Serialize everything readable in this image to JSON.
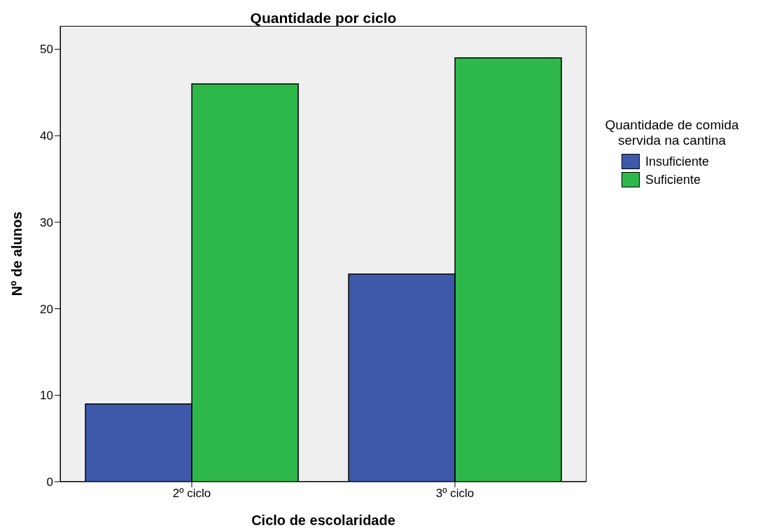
{
  "chart_data": {
    "type": "bar",
    "title": "Quantidade por ciclo",
    "xlabel": "Ciclo de escolaridade",
    "ylabel": "Nº de alunos",
    "legend_title": "Quantidade de comida servida na cantina",
    "categories": [
      "2º ciclo",
      "3º ciclo"
    ],
    "series": [
      {
        "name": "Insuficiente",
        "color": "#3f59aa",
        "values": [
          9,
          24
        ]
      },
      {
        "name": "Suficiente",
        "color": "#2fb84a",
        "values": [
          46,
          49
        ]
      }
    ],
    "ylim": [
      0,
      52.7
    ],
    "yticks": [
      0,
      10,
      20,
      30,
      40,
      50
    ],
    "grid": false,
    "legend": "right"
  }
}
